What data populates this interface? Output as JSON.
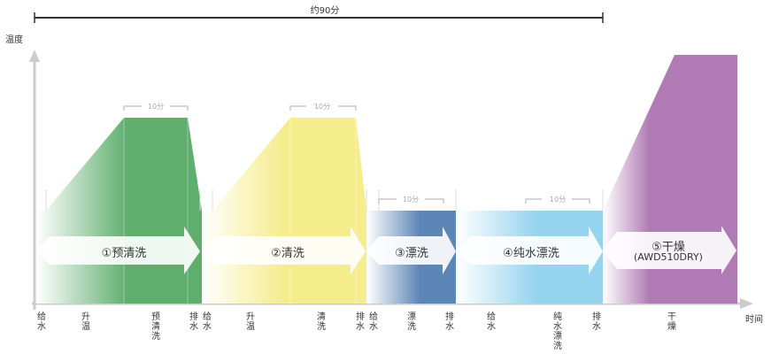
{
  "header": {
    "total_time": "约90分"
  },
  "axes": {
    "y_label": "温度",
    "x_label": "时间"
  },
  "duration_label": "10分",
  "phases": [
    {
      "id": "prewash",
      "label": "①预清洗",
      "color": "#5fae6e"
    },
    {
      "id": "wash",
      "label": "②清洗",
      "color": "#f5ec8c"
    },
    {
      "id": "rinse",
      "label": "③漂洗",
      "color": "#5c86b6"
    },
    {
      "id": "pure-rinse",
      "label": "④纯水漂洗",
      "color": "#96d3ee"
    },
    {
      "id": "dry",
      "label": "⑤干燥",
      "sublabel": "(AWD510DRY)",
      "color": "#b07ab4"
    }
  ],
  "step_labels": [
    "给水",
    "升温",
    "预清洗",
    "排水",
    "给水",
    "升温",
    "清洗",
    "排水",
    "给水",
    "漂洗",
    "排水",
    "给水",
    "纯水漂洗",
    "排水",
    "干燥"
  ]
}
